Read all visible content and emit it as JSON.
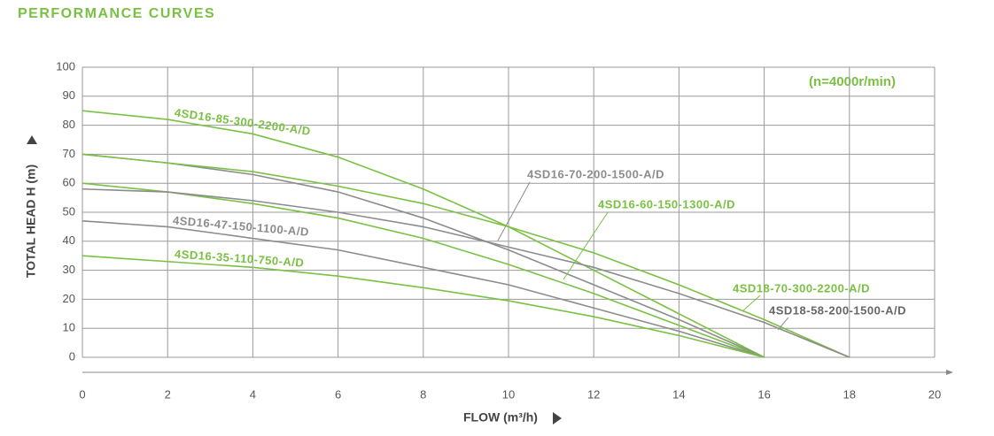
{
  "chart_data": {
    "type": "line",
    "title": "PERFORMANCE CURVES",
    "annotation": "(n=4000r/min)",
    "x_label": "FLOW (m³/h)",
    "y_label": "TOTAL HEAD H (m)",
    "x": [
      0,
      2,
      4,
      6,
      8,
      10,
      12,
      14,
      16,
      18
    ],
    "series": [
      {
        "name": "4SD16-85-300-2200-A/D",
        "color": "#7ac143",
        "values": [
          85,
          82,
          77,
          69,
          58,
          45,
          30,
          15,
          0,
          null
        ]
      },
      {
        "name": "4SD16-70-200-1500-A/D",
        "color": "#8c8c8c",
        "values": [
          70,
          67,
          63,
          57,
          48,
          37,
          25,
          13,
          0,
          null
        ]
      },
      {
        "name": "4SD16-60-150-1300-A/D",
        "color": "#7ac143",
        "values": [
          60,
          57,
          53,
          48,
          41,
          32,
          22,
          11,
          0,
          null
        ]
      },
      {
        "name": "4SD16-47-150-1100-A/D",
        "color": "#8c8c8c",
        "values": [
          47,
          45,
          41,
          37,
          31,
          25,
          17,
          9,
          0,
          null
        ]
      },
      {
        "name": "4SD16-35-110-750-A/D",
        "color": "#7ac143",
        "values": [
          35,
          33,
          31,
          28,
          24,
          19.5,
          14,
          7.5,
          0,
          null
        ]
      },
      {
        "name": "4SD18-70-300-2200-A/D",
        "color": "#7ac143",
        "values": [
          70,
          67,
          64,
          59,
          53,
          45,
          36,
          25,
          13,
          0
        ]
      },
      {
        "name": "4SD18-58-200-1500-A/D",
        "color": "#8c8c8c",
        "values": [
          58,
          57,
          54,
          50,
          45,
          38,
          31,
          22,
          12,
          0
        ]
      }
    ],
    "xlim": [
      0,
      20
    ],
    "ylim": [
      0,
      100
    ],
    "xticks": [
      0,
      2,
      4,
      6,
      8,
      10,
      12,
      14,
      16,
      18,
      20
    ],
    "yticks": [
      0,
      10,
      20,
      30,
      40,
      50,
      60,
      70,
      80,
      90,
      100
    ],
    "grid": true
  }
}
